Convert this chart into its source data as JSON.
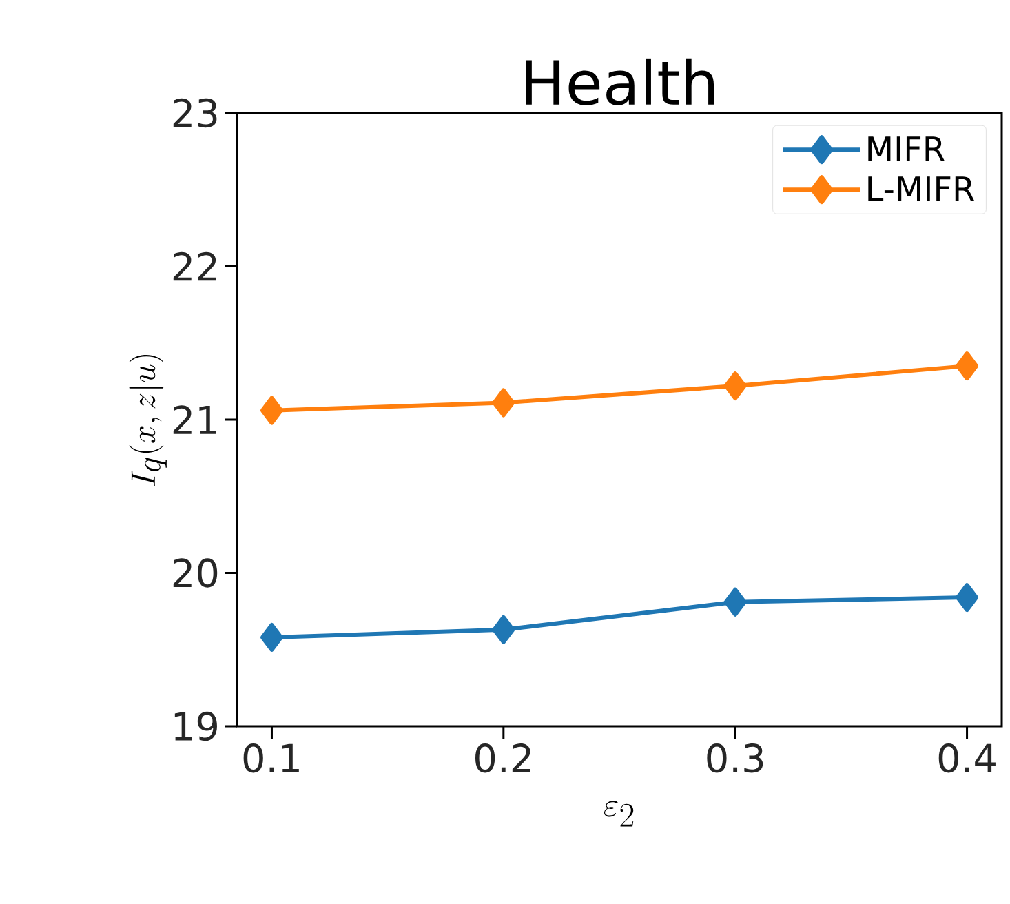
{
  "chart_data": {
    "type": "line",
    "title": "Health",
    "xlabel": "\\varepsilon_2",
    "ylabel": "I_q(x,z|u)",
    "x": [
      0.1,
      0.2,
      0.3,
      0.4
    ],
    "series": [
      {
        "name": "MIFR",
        "color": "#1f77b4",
        "values": [
          19.58,
          19.63,
          19.81,
          19.84
        ]
      },
      {
        "name": "L-MIFR",
        "color": "#ff7f0e",
        "values": [
          21.06,
          21.11,
          21.22,
          21.35
        ]
      }
    ],
    "xlim": [
      0.085,
      0.415
    ],
    "xticks": [
      0.1,
      0.2,
      0.3,
      0.4
    ],
    "ylim": [
      19,
      23
    ],
    "yticks": [
      19,
      20,
      21,
      22,
      23
    ],
    "legend": "top right",
    "marker": "diamond",
    "line_style": "solid",
    "grid": false
  }
}
